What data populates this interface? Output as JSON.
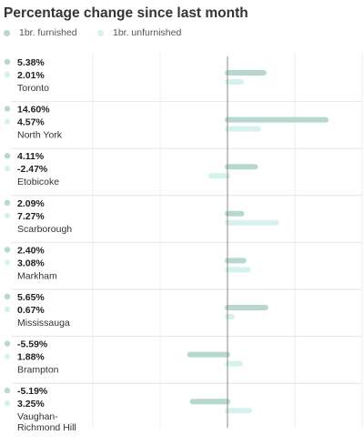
{
  "chart_data": {
    "type": "bar",
    "orientation": "horizontal",
    "title": "Percentage change since last month",
    "categories": [
      "Toronto",
      "North York",
      "Etobicoke",
      "Scarborough",
      "Markham",
      "Mississauga",
      "Brampton",
      "Vaughan-Richmond Hill"
    ],
    "category_display": [
      [
        "Toronto"
      ],
      [
        "North York"
      ],
      [
        "Etobicoke"
      ],
      [
        "Scarborough"
      ],
      [
        "Markham"
      ],
      [
        "Mississauga"
      ],
      [
        "Brampton"
      ],
      [
        "Vaughan-",
        "Richmond Hill"
      ]
    ],
    "series": [
      {
        "name": "1br. furnished",
        "values": [
          5.38,
          14.6,
          4.11,
          2.09,
          2.4,
          5.65,
          -5.59,
          -5.19
        ],
        "labels": [
          "5.38%",
          "14.60%",
          "4.11%",
          "2.09%",
          "2.40%",
          "5.65%",
          "-5.59%",
          "-5.19%"
        ],
        "color": "#b7d8d0"
      },
      {
        "name": "1br. unfurnished",
        "values": [
          2.01,
          4.57,
          -2.47,
          7.27,
          3.08,
          0.67,
          1.88,
          3.25
        ],
        "labels": [
          "2.01%",
          "4.57%",
          "-2.47%",
          "7.27%",
          "3.08%",
          "0.67%",
          "1.88%",
          "3.25%"
        ],
        "color": "#d6f2ee"
      }
    ],
    "xlim": [
      -20,
      20
    ],
    "grid": true,
    "legend_position": "top-left"
  }
}
